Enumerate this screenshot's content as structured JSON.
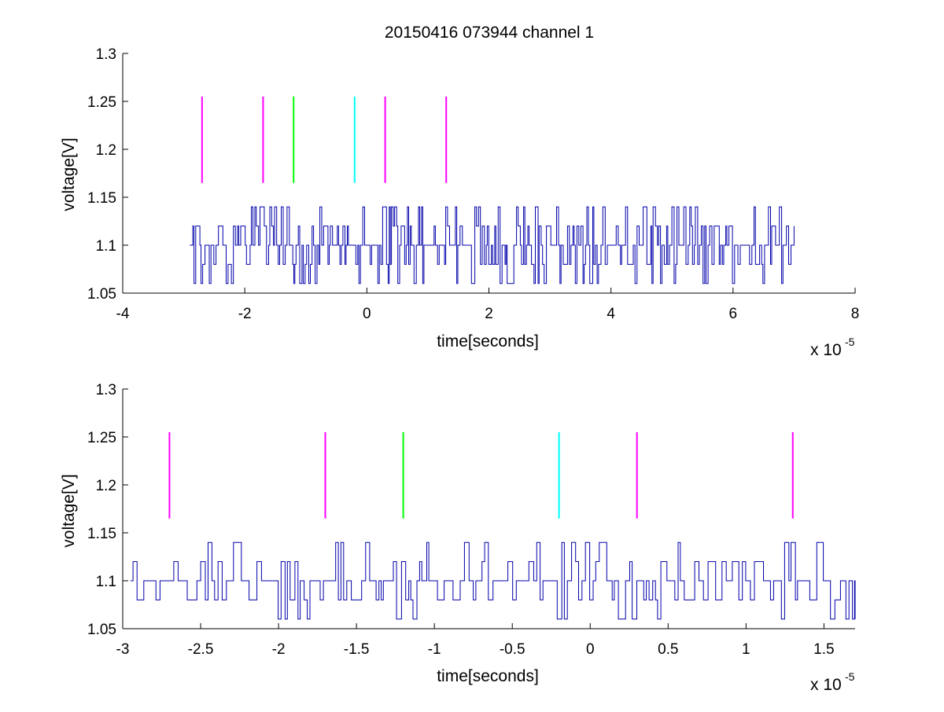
{
  "chart_data": [
    {
      "type": "line",
      "title": "20150416 073944 channel 1",
      "xlabel": "time[seconds]",
      "ylabel": "voltage[V]",
      "x_exponent_label": "x 10",
      "x_exponent": "-5",
      "xlim": [
        -4,
        8
      ],
      "ylim": [
        1.05,
        1.3
      ],
      "xticks": [
        -4,
        -2,
        0,
        2,
        4,
        6,
        8
      ],
      "xtick_labels": [
        "-4",
        "-2",
        "0",
        "2",
        "4",
        "6",
        "8"
      ],
      "yticks": [
        1.05,
        1.1,
        1.15,
        1.2,
        1.25,
        1.3
      ],
      "ytick_labels": [
        "1.05",
        "1.1",
        "1.15",
        "1.2",
        "1.25",
        "1.3"
      ],
      "grid": false,
      "signal": {
        "color": "#0000aa",
        "x_range": [
          -2.9,
          7.0
        ],
        "levels": [
          1.06,
          1.08,
          1.1,
          1.12,
          1.14
        ],
        "baseline": 1.1
      },
      "markers": [
        {
          "x": -2.7,
          "color": "#ff00ff",
          "y": [
            1.165,
            1.255
          ]
        },
        {
          "x": -1.7,
          "color": "#ff00ff",
          "y": [
            1.165,
            1.255
          ]
        },
        {
          "x": -1.2,
          "color": "#00ff00",
          "y": [
            1.165,
            1.255
          ]
        },
        {
          "x": -0.2,
          "color": "#00ffff",
          "y": [
            1.165,
            1.255
          ]
        },
        {
          "x": 0.3,
          "color": "#ff00ff",
          "y": [
            1.165,
            1.255
          ]
        },
        {
          "x": 1.3,
          "color": "#ff00ff",
          "y": [
            1.165,
            1.255
          ]
        }
      ]
    },
    {
      "type": "line",
      "xlabel": "time[seconds]",
      "ylabel": "voltage[V]",
      "x_exponent_label": "x 10",
      "x_exponent": "-5",
      "xlim": [
        -3,
        1.7
      ],
      "ylim": [
        1.05,
        1.3
      ],
      "xticks": [
        -3,
        -2.5,
        -2,
        -1.5,
        -1,
        -0.5,
        0,
        0.5,
        1,
        1.5
      ],
      "xtick_labels": [
        "-3",
        "-2.5",
        "-2",
        "-1.5",
        "-1",
        "-0.5",
        "0",
        "0.5",
        "1",
        "1.5"
      ],
      "yticks": [
        1.05,
        1.1,
        1.15,
        1.2,
        1.25,
        1.3
      ],
      "ytick_labels": [
        "1.05",
        "1.1",
        "1.15",
        "1.2",
        "1.25",
        "1.3"
      ],
      "grid": false,
      "signal": {
        "color": "#0000aa",
        "x_range": [
          -2.95,
          1.7
        ],
        "levels": [
          1.06,
          1.08,
          1.1,
          1.12,
          1.14
        ],
        "baseline": 1.1
      },
      "markers": [
        {
          "x": -2.7,
          "color": "#ff00ff",
          "y": [
            1.165,
            1.255
          ]
        },
        {
          "x": -1.7,
          "color": "#ff00ff",
          "y": [
            1.165,
            1.255
          ]
        },
        {
          "x": -1.2,
          "color": "#00ff00",
          "y": [
            1.165,
            1.255
          ]
        },
        {
          "x": -0.2,
          "color": "#00ffff",
          "y": [
            1.165,
            1.255
          ]
        },
        {
          "x": 0.3,
          "color": "#ff00ff",
          "y": [
            1.165,
            1.255
          ]
        },
        {
          "x": 1.3,
          "color": "#ff00ff",
          "y": [
            1.165,
            1.255
          ]
        }
      ]
    }
  ]
}
